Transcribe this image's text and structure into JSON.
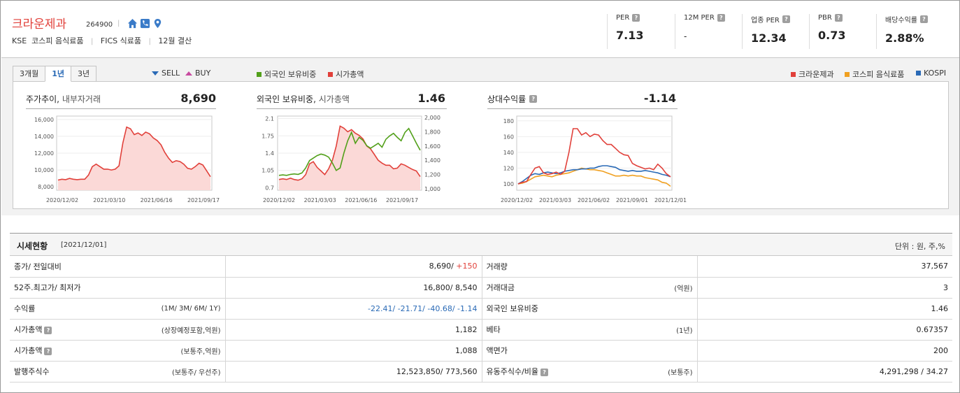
{
  "company": {
    "name": "크라운제과",
    "code": "264900",
    "market": "KSE",
    "kse_industry": "코스피 음식료품",
    "fics_industry": "FICS 식료품",
    "settlement": "12월 결산",
    "icons": [
      "home-icon",
      "phone-icon",
      "location-pin-icon"
    ]
  },
  "metrics": [
    {
      "label": "PER",
      "value": "7.13"
    },
    {
      "label": "12M PER",
      "value": "-"
    },
    {
      "label": "업종 PER",
      "value": "12.34"
    },
    {
      "label": "PBR",
      "value": "0.73"
    },
    {
      "label": "배당수익률",
      "value": "2.88%"
    }
  ],
  "tabs": [
    "3개월",
    "1년",
    "3년"
  ],
  "active_tab": "1년",
  "signals": {
    "sell": "SELL",
    "buy": "BUY"
  },
  "mid_legend": [
    {
      "label": "외국인 보유비중",
      "color": "#52a01a"
    },
    {
      "label": "시가총액",
      "color": "#e1403a"
    }
  ],
  "right_legend": [
    {
      "label": "크라운제과",
      "color": "#e1403a"
    },
    {
      "label": "코스피 음식료품",
      "color": "#f0a020"
    },
    {
      "label": "KOSPI",
      "color": "#2a6ab6"
    }
  ],
  "charts": {
    "c1": {
      "title": "주가추이",
      "subtitle": "내부자거래",
      "value": "8,690"
    },
    "c2": {
      "title": "외국인 보유비중",
      "subtitle": "시가총액",
      "value": "1.46"
    },
    "c3": {
      "title": "상대수익률",
      "value": "-1.14"
    }
  },
  "chart_data": [
    {
      "type": "area",
      "y_ticks": [
        "16,000",
        "14,000",
        "12,000",
        "10,000",
        "8,000"
      ],
      "x_ticks": [
        "2020/12/02",
        "2021/03/10",
        "2021/06/16",
        "2021/09/17"
      ],
      "ylim": [
        7600,
        16400
      ],
      "series": [
        {
          "color": "#e1403a",
          "values": [
            8800,
            8900,
            8850,
            9000,
            8900,
            8850,
            8900,
            8900,
            9400,
            10400,
            10700,
            10400,
            10100,
            10100,
            10000,
            10100,
            10500,
            13200,
            15100,
            14900,
            14200,
            14400,
            14100,
            14500,
            14300,
            13800,
            13500,
            13000,
            12100,
            11400,
            10900,
            11100,
            11000,
            10700,
            10200,
            10100,
            10400,
            10800,
            10600,
            9900,
            9200
          ]
        }
      ]
    },
    {
      "type": "line",
      "y_ticks_left": [
        "2.1",
        "1.75",
        "1.4",
        "1.05",
        "0.7"
      ],
      "y_ticks_right": [
        "2,000",
        "1,800",
        "1,600",
        "1,400",
        "1,200",
        "1,000"
      ],
      "x_ticks": [
        "2020/12/02",
        "2021/03/03",
        "2021/06/16",
        "2021/09/17"
      ],
      "ylim_left": [
        0.65,
        2.15
      ],
      "ylim_right": [
        980,
        2020
      ],
      "series": [
        {
          "axis": "left",
          "color": "#52a01a",
          "values": [
            0.95,
            0.96,
            0.95,
            0.97,
            0.98,
            0.97,
            1.0,
            1.1,
            1.25,
            1.3,
            1.35,
            1.38,
            1.36,
            1.32,
            1.2,
            1.05,
            1.1,
            1.4,
            1.65,
            1.82,
            1.6,
            1.72,
            1.66,
            1.55,
            1.5,
            1.55,
            1.6,
            1.52,
            1.68,
            1.75,
            1.8,
            1.72,
            1.65,
            1.82,
            1.9,
            1.75,
            1.6,
            1.46
          ]
        },
        {
          "axis": "right",
          "color": "#e1403a",
          "values": [
            1130,
            1140,
            1130,
            1150,
            1130,
            1120,
            1140,
            1200,
            1350,
            1380,
            1300,
            1250,
            1200,
            1280,
            1400,
            1600,
            1880,
            1850,
            1800,
            1830,
            1780,
            1750,
            1700,
            1600,
            1560,
            1480,
            1400,
            1360,
            1330,
            1330,
            1280,
            1290,
            1350,
            1330,
            1300,
            1270,
            1250,
            1170
          ]
        }
      ]
    },
    {
      "type": "line",
      "y_ticks": [
        "180",
        "160",
        "140",
        "120",
        "100"
      ],
      "x_ticks": [
        "2020/12/02",
        "2021/03/03",
        "2021/06/02",
        "2021/09/01",
        "2021/12/01"
      ],
      "ylim": [
        92,
        186
      ],
      "series": [
        {
          "name": "크라운제과",
          "color": "#e1403a",
          "values": [
            100,
            102,
            103,
            112,
            120,
            122,
            114,
            112,
            113,
            115,
            112,
            116,
            140,
            170,
            170,
            162,
            165,
            160,
            163,
            162,
            155,
            150,
            150,
            145,
            140,
            137,
            136,
            126,
            123,
            121,
            119,
            120,
            118,
            125,
            120,
            113,
            109
          ]
        },
        {
          "name": "코스피 음식료품",
          "color": "#f0a020",
          "values": [
            100,
            101,
            103,
            106,
            109,
            110,
            111,
            110,
            109,
            111,
            112,
            113,
            114,
            116,
            118,
            120,
            119,
            118,
            118,
            117,
            116,
            114,
            112,
            110,
            110,
            111,
            110,
            111,
            110,
            110,
            108,
            107,
            106,
            105,
            102,
            101,
            97
          ]
        },
        {
          "name": "KOSPI",
          "color": "#2a6ab6",
          "values": [
            100,
            103,
            107,
            111,
            113,
            112,
            114,
            115,
            114,
            113,
            114,
            116,
            117,
            118,
            118,
            119,
            119,
            120,
            120,
            122,
            123,
            123,
            122,
            121,
            118,
            117,
            116,
            117,
            116,
            116,
            117,
            116,
            115,
            114,
            112,
            111,
            109
          ]
        }
      ]
    }
  ],
  "section": {
    "title": "시세현황",
    "date": "[2021/12/01]",
    "unit": "단위 : 원, 주,%"
  },
  "table": {
    "rows": [
      {
        "l_label": "종가/ 전일대비",
        "l_note": "",
        "l_value": "8,690/",
        "l_value2": "+150",
        "r_label": "거래량",
        "r_note": "",
        "r_value": "37,567"
      },
      {
        "l_label": "52주.최고가/ 최저가",
        "l_note": "",
        "l_value": "16,800/ 8,540",
        "l_value2": "",
        "r_label": "거래대금",
        "r_note": "(억원)",
        "r_value": "3"
      },
      {
        "l_label": "수익률",
        "l_note": "(1M/ 3M/ 6M/ 1Y)",
        "l_value": "-22.41/ -21.71/ -40.68/ -1.14",
        "l_value2": "",
        "r_label": "외국인 보유비중",
        "r_note": "",
        "r_value": "1.46"
      },
      {
        "l_label": "시가총액",
        "l_note": "(상장예정포함,억원)",
        "l_value": "1,182",
        "l_value2": "",
        "r_label": "베타",
        "r_note": "(1년)",
        "r_value": "0.67357"
      },
      {
        "l_label": "시가총액",
        "l_note": "(보통주,억원)",
        "l_value": "1,088",
        "l_value2": "",
        "r_label": "액면가",
        "r_note": "",
        "r_value": "200"
      },
      {
        "l_label": "발행주식수",
        "l_note": "(보통주/ 우선주)",
        "l_value": "12,523,850/ 773,560",
        "l_value2": "",
        "r_label": "유동주식수/비율",
        "r_note": "(보통주)",
        "r_value": "4,291,298 / 34.27"
      }
    ]
  }
}
